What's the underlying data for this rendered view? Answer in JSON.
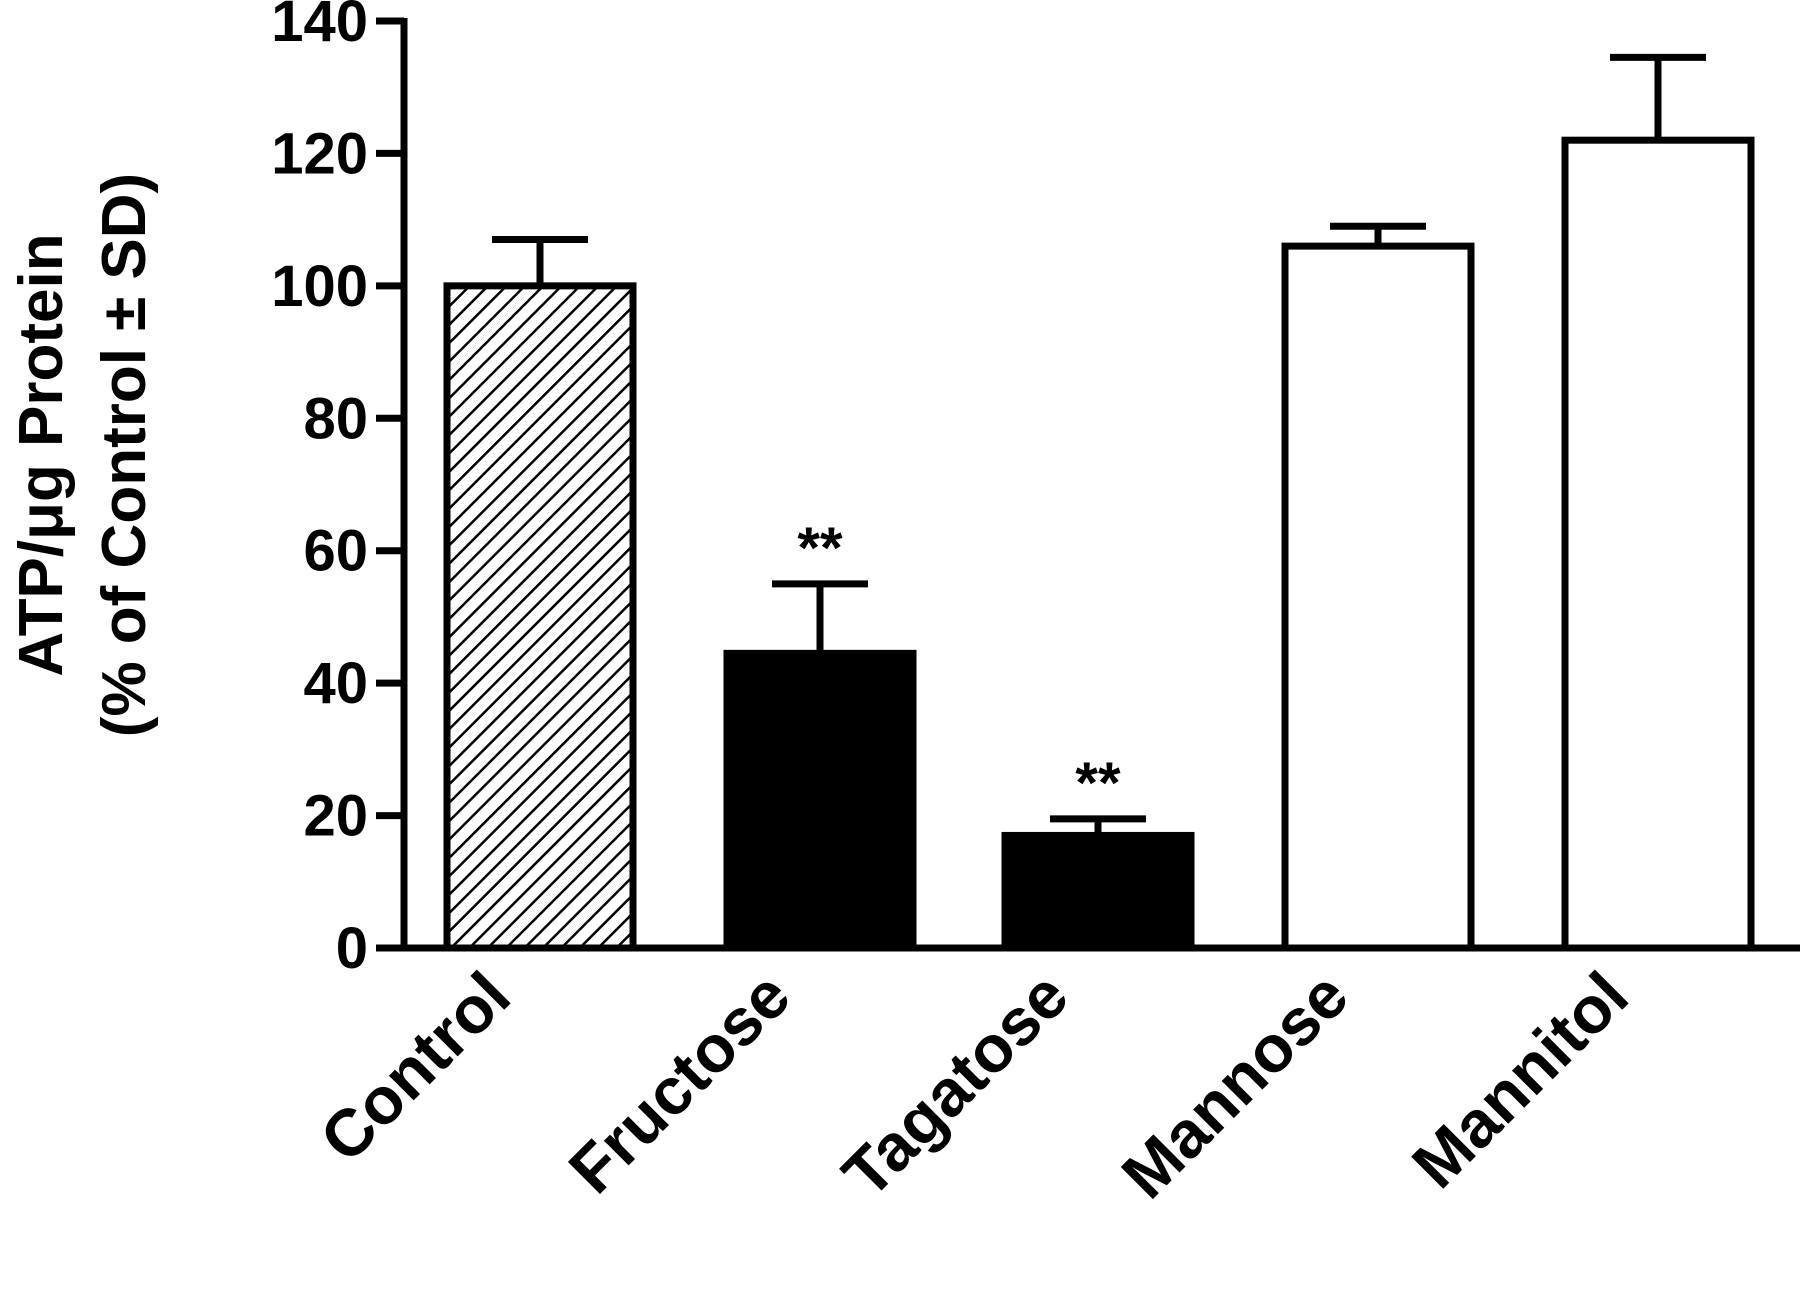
{
  "chart_data": {
    "type": "bar",
    "title": "",
    "xlabel": "",
    "ylabel": "ATP/μg Protein",
    "ylabel_line2": "(% of Control ± SD)",
    "ylim": [
      0,
      140
    ],
    "yticks": [
      0,
      20,
      40,
      60,
      80,
      100,
      120,
      140
    ],
    "ytick_labels": [
      "0",
      "20",
      "40",
      "60",
      "80",
      "100",
      "120",
      "140"
    ],
    "categories": [
      "Control",
      "Fructose",
      "Tagatose",
      "Mannose",
      "Mannitol"
    ],
    "values": [
      100,
      44.5,
      17,
      106,
      122
    ],
    "errors": [
      7,
      10.5,
      2.5,
      3,
      12.5
    ],
    "annotations": [
      "",
      "**",
      "**",
      "",
      ""
    ],
    "fills": [
      "hatched",
      "black",
      "black",
      "white",
      "white"
    ],
    "grid": false,
    "legend": "none"
  }
}
